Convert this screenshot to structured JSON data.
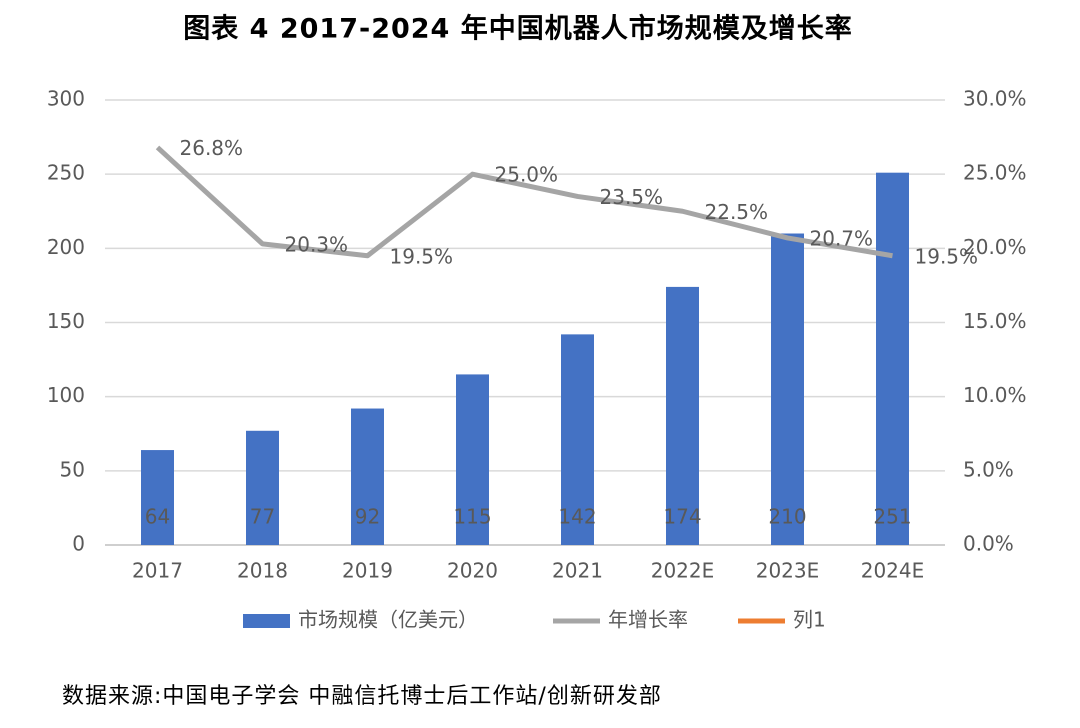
{
  "chart_data": {
    "type": "bar-line",
    "title": "图表 4 2017-2024 年中国机器人市场规模及增长率",
    "categories": [
      "2017",
      "2018",
      "2019",
      "2020",
      "2021",
      "2022E",
      "2023E",
      "2024E"
    ],
    "series": [
      {
        "name": "市场规模（亿美元）",
        "color": "#4472c4",
        "type": "bar",
        "axis": "y",
        "values": [
          64,
          77,
          92,
          115,
          142,
          174,
          210,
          251
        ]
      },
      {
        "name": "年增长率",
        "color": "#a5a5a5",
        "type": "line",
        "axis": "y2",
        "values": [
          26.8,
          20.3,
          19.5,
          25.0,
          23.5,
          22.5,
          20.7,
          19.5
        ],
        "value_labels": [
          "26.8%",
          "20.3%",
          "19.5%",
          "25.0%",
          "23.5%",
          "22.5%",
          "20.7%",
          "19.5%"
        ]
      },
      {
        "name": "列1",
        "color": "#ed7d31",
        "type": "line",
        "axis": "y2",
        "values": [
          null,
          null,
          null,
          null,
          null,
          null,
          null,
          null
        ]
      }
    ],
    "ylim": [
      0,
      300
    ],
    "yticks": [
      0,
      50,
      100,
      150,
      200,
      250,
      300
    ],
    "y2lim": [
      0,
      30
    ],
    "y2ticks": [
      {
        "value": 0,
        "label": "0.0%"
      },
      {
        "value": 5,
        "label": "5.0%"
      },
      {
        "value": 10,
        "label": "10.0%"
      },
      {
        "value": 15,
        "label": "15.0%"
      },
      {
        "value": 20,
        "label": "20.0%"
      },
      {
        "value": 25,
        "label": "25.0%"
      },
      {
        "value": 30,
        "label": "30.0%"
      }
    ],
    "grid": true,
    "legend": "bottom",
    "source": "数据来源:中国电子学会 中融信托博士后工作站/创新研发部"
  }
}
